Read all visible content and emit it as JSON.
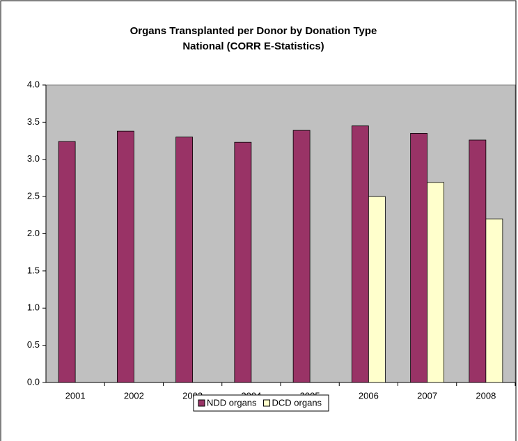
{
  "chart_data": {
    "type": "bar",
    "title": "Organs Transplanted per Donor by Donation Type",
    "subtitle": "National (CORR E-Statistics)",
    "categories": [
      "2001",
      "2002",
      "2003",
      "2004",
      "2005",
      "2006",
      "2007",
      "2008"
    ],
    "series": [
      {
        "name": "NDD organs",
        "color": "#993366",
        "values": [
          3.24,
          3.38,
          3.3,
          3.23,
          3.39,
          3.45,
          3.35,
          3.26
        ]
      },
      {
        "name": "DCD organs",
        "color": "#ffffcc",
        "values": [
          null,
          null,
          null,
          null,
          null,
          2.5,
          2.69,
          2.2
        ]
      }
    ],
    "ylim": [
      0,
      4
    ],
    "yticks": [
      {
        "value": 0,
        "label": "0.0"
      },
      0.5,
      {
        "value": 1,
        "label": "1.0"
      },
      1.5,
      {
        "value": 2,
        "label": "2.0"
      },
      2.5,
      {
        "value": 3,
        "label": "3.0"
      },
      3.5,
      {
        "value": 4,
        "label": "4.0"
      }
    ],
    "grid": false,
    "legend": "bottom",
    "plot_background": "#c0c0c0"
  }
}
